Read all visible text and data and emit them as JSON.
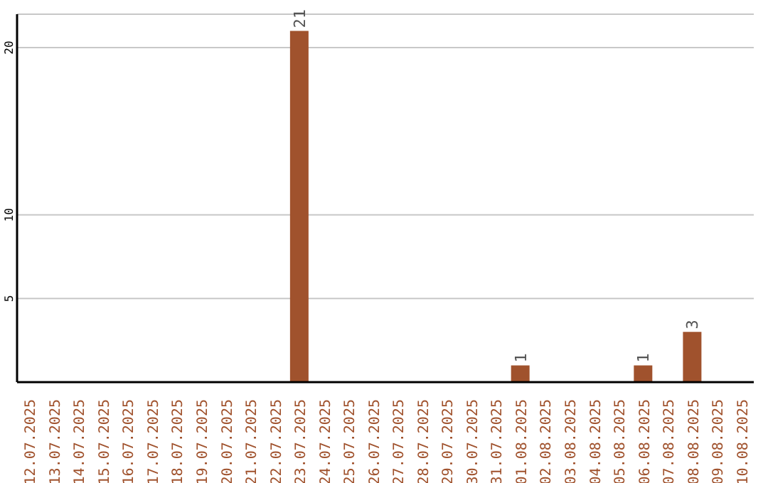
{
  "chart_data": {
    "type": "bar",
    "categories": [
      "12.07.2025",
      "13.07.2025",
      "14.07.2025",
      "15.07.2025",
      "16.07.2025",
      "17.07.2025",
      "18.07.2025",
      "19.07.2025",
      "20.07.2025",
      "21.07.2025",
      "22.07.2025",
      "23.07.2025",
      "24.07.2025",
      "25.07.2025",
      "26.07.2025",
      "27.07.2025",
      "28.07.2025",
      "29.07.2025",
      "30.07.2025",
      "31.07.2025",
      "01.08.2025",
      "02.08.2025",
      "03.08.2025",
      "04.08.2025",
      "05.08.2025",
      "06.08.2025",
      "07.08.2025",
      "08.08.2025",
      "09.08.2025",
      "10.08.2025"
    ],
    "values": [
      0,
      0,
      0,
      0,
      0,
      0,
      0,
      0,
      0,
      0,
      0,
      21,
      0,
      0,
      0,
      0,
      0,
      0,
      0,
      0,
      1,
      0,
      0,
      0,
      0,
      1,
      0,
      3,
      0,
      0
    ],
    "value_labels": [
      null,
      null,
      null,
      null,
      null,
      null,
      null,
      null,
      null,
      null,
      null,
      "21",
      null,
      null,
      null,
      null,
      null,
      null,
      null,
      null,
      "1",
      null,
      null,
      null,
      null,
      "1",
      null,
      "3",
      null,
      null
    ],
    "color": "#a0522d",
    "ylim": [
      0,
      22
    ],
    "yticks": [
      5,
      10,
      20
    ],
    "grid": "y"
  }
}
